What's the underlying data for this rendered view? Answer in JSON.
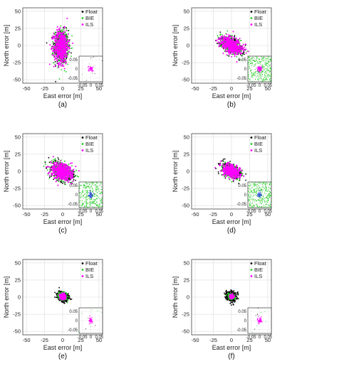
{
  "figure": {
    "legend_labels": [
      "Float",
      "BIE",
      "ILS"
    ],
    "axis_x_label": "East error [m]",
    "axis_y_label": "North error [m]",
    "main_x_ticks": [
      "-50",
      "-25",
      "0",
      "25",
      "50"
    ],
    "main_y_ticks": [
      "50",
      "25",
      "0",
      "-25",
      "-50"
    ],
    "inset_x_ticks": [
      "-0.05",
      "0",
      "0.05"
    ],
    "inset_y_ticks": [
      "0.05",
      "0",
      "-0.05"
    ],
    "colors": {
      "float": "#000000",
      "bie": "#22cc22",
      "ils": "#ff00ff",
      "inset_fix": "#3355dd"
    }
  },
  "chart_data": [
    {
      "type": "scatter",
      "label": "(a)",
      "xlim": [
        -55,
        55
      ],
      "ylim": [
        -55,
        55
      ],
      "series": [
        {
          "name": "Float",
          "center": [
            -2,
            -2
          ],
          "spread": [
            9,
            22
          ],
          "tilt": 0
        },
        {
          "name": "BIE",
          "center": [
            -2,
            -2
          ],
          "spread": [
            9,
            22
          ],
          "tilt": 0
        },
        {
          "name": "ILS",
          "center": [
            -2,
            -2
          ],
          "spread": [
            9,
            22
          ],
          "tilt": 0
        }
      ],
      "inset": {
        "xlim": [
          -0.07,
          0.07
        ],
        "ylim": [
          -0.07,
          0.07
        ],
        "fill": "sparse",
        "core": "magenta"
      }
    },
    {
      "type": "scatter",
      "label": "(b)",
      "xlim": [
        -55,
        55
      ],
      "ylim": [
        -55,
        55
      ],
      "series": [
        {
          "name": "Float",
          "center": [
            0,
            0
          ],
          "spread": [
            15,
            9
          ],
          "tilt": -35
        },
        {
          "name": "BIE",
          "center": [
            0,
            0
          ],
          "spread": [
            15,
            9
          ],
          "tilt": -35
        },
        {
          "name": "ILS",
          "center": [
            0,
            0
          ],
          "spread": [
            15,
            9
          ],
          "tilt": -35
        }
      ],
      "inset": {
        "xlim": [
          -0.07,
          0.07
        ],
        "ylim": [
          -0.07,
          0.07
        ],
        "fill": "dense",
        "core": "magenta-blue"
      }
    },
    {
      "type": "scatter",
      "label": "(c)",
      "xlim": [
        -55,
        55
      ],
      "ylim": [
        -55,
        55
      ],
      "series": [
        {
          "name": "Float",
          "center": [
            -1,
            0
          ],
          "spread": [
            14,
            10
          ],
          "tilt": -35
        },
        {
          "name": "BIE",
          "center": [
            -1,
            0
          ],
          "spread": [
            14,
            10
          ],
          "tilt": -35
        },
        {
          "name": "ILS",
          "center": [
            -1,
            0
          ],
          "spread": [
            14,
            10
          ],
          "tilt": -35
        }
      ],
      "inset": {
        "xlim": [
          -0.07,
          0.07
        ],
        "ylim": [
          -0.07,
          0.07
        ],
        "fill": "dense",
        "core": "blue"
      }
    },
    {
      "type": "scatter",
      "label": "(d)",
      "xlim": [
        -55,
        55
      ],
      "ylim": [
        -55,
        55
      ],
      "series": [
        {
          "name": "Float",
          "center": [
            0,
            0
          ],
          "spread": [
            13,
            8
          ],
          "tilt": -35
        },
        {
          "name": "BIE",
          "center": [
            0,
            0
          ],
          "spread": [
            11,
            7
          ],
          "tilt": -35
        },
        {
          "name": "ILS",
          "center": [
            0,
            0
          ],
          "spread": [
            11,
            7
          ],
          "tilt": -35
        }
      ],
      "inset": {
        "xlim": [
          -0.07,
          0.07
        ],
        "ylim": [
          -0.07,
          0.07
        ],
        "fill": "dense",
        "core": "blue"
      }
    },
    {
      "type": "scatter",
      "label": "(e)",
      "xlim": [
        -55,
        55
      ],
      "ylim": [
        -55,
        55
      ],
      "series": [
        {
          "name": "Float",
          "center": [
            0,
            1
          ],
          "spread": [
            8,
            6
          ],
          "tilt": -35
        },
        {
          "name": "BIE",
          "center": [
            0,
            1
          ],
          "spread": [
            5,
            4
          ],
          "tilt": -35
        },
        {
          "name": "ILS",
          "center": [
            0,
            1
          ],
          "spread": [
            3,
            3
          ],
          "tilt": -35
        }
      ],
      "inset": {
        "xlim": [
          -0.07,
          0.07
        ],
        "ylim": [
          -0.07,
          0.07
        ],
        "fill": "sparse",
        "core": "magenta"
      }
    },
    {
      "type": "scatter",
      "label": "(f)",
      "xlim": [
        -55,
        55
      ],
      "ylim": [
        -55,
        55
      ],
      "series": [
        {
          "name": "Float",
          "center": [
            0,
            1
          ],
          "spread": [
            7,
            6
          ],
          "tilt": -35
        },
        {
          "name": "BIE",
          "center": [
            0,
            1
          ],
          "spread": [
            4,
            3
          ],
          "tilt": -35
        },
        {
          "name": "ILS",
          "center": [
            0,
            1
          ],
          "spread": [
            2,
            2
          ],
          "tilt": -35
        }
      ],
      "inset": {
        "xlim": [
          -0.07,
          0.07
        ],
        "ylim": [
          -0.07,
          0.07
        ],
        "fill": "sparse",
        "core": "magenta"
      }
    }
  ]
}
